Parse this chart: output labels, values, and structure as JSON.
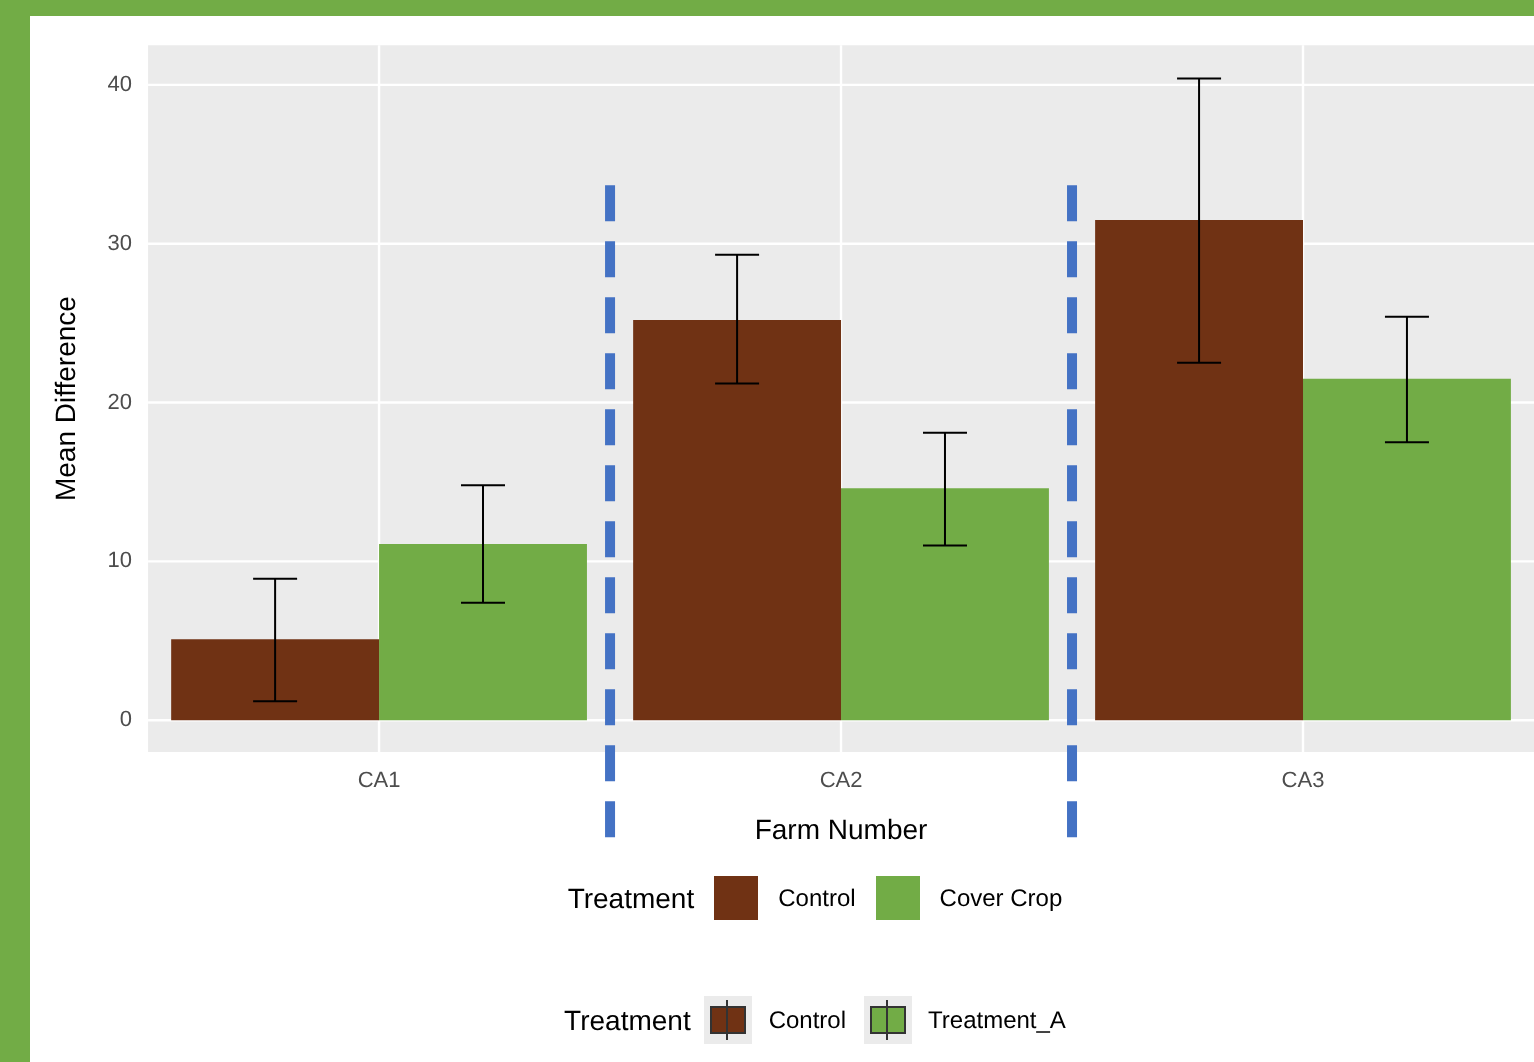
{
  "chart_data": {
    "type": "bar",
    "xlabel": "Farm Number",
    "ylabel": "Mean Difference",
    "legend_title": "Treatment",
    "categories": [
      "CA1",
      "CA2",
      "CA3"
    ],
    "series": [
      {
        "name": "Control",
        "color": "#703214",
        "values": [
          5.1,
          25.2,
          31.5
        ],
        "errors": [
          [
            1.2,
            8.9
          ],
          [
            21.2,
            29.3
          ],
          [
            22.5,
            40.4
          ]
        ]
      },
      {
        "name": "Cover Crop",
        "color": "#72ac46",
        "values": [
          11.1,
          14.6,
          21.5
        ],
        "errors": [
          [
            7.4,
            14.8
          ],
          [
            11,
            18.1
          ],
          [
            17.5,
            25.4
          ]
        ]
      }
    ],
    "ylim": [
      -2,
      42.5
    ],
    "yticks": [
      0,
      10,
      20,
      30,
      40
    ],
    "grid": true,
    "legend": "bottom",
    "annotations": [
      "Treatment",
      "Control",
      "Treatment_A"
    ]
  }
}
